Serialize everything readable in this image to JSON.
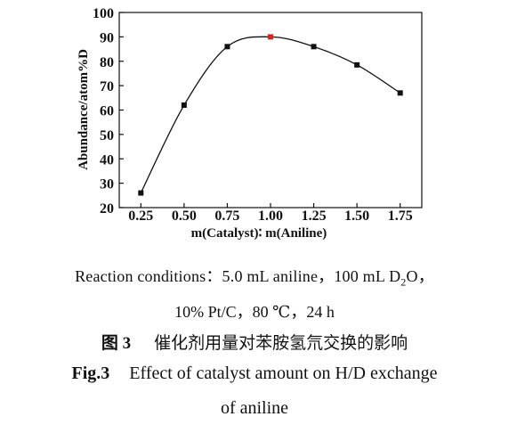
{
  "chart_data": {
    "type": "line",
    "x": [
      0.25,
      0.5,
      0.75,
      1.0,
      1.25,
      1.5,
      1.75
    ],
    "y": [
      26,
      62,
      86,
      90,
      86,
      78.5,
      67
    ],
    "highlight_index": 3,
    "highlight_color": "#e0201e",
    "point_color": "#111111",
    "xticks": [
      "0.25",
      "0.50",
      "0.75",
      "1.00",
      "1.25",
      "1.50",
      "1.75"
    ],
    "yticks": [
      "20",
      "30",
      "40",
      "50",
      "60",
      "70",
      "80",
      "90",
      "100"
    ],
    "xlim": [
      0.125,
      1.875
    ],
    "ylim": [
      20,
      100
    ],
    "xlabel": "m(Catalyst)∶ m(Aniline)",
    "ylabel": "Abundance/atom%D",
    "grid": false,
    "smooth": true
  },
  "caption": {
    "conditions_line1_pre": "Reaction conditions：5.0 mL aniline，100 mL D",
    "conditions_line1_sub": "2",
    "conditions_line1_post": "O，",
    "conditions_line2": "10% Pt/C，80 ℃，24 h",
    "cn_label": "图 3",
    "cn_text": "催化剂用量对苯胺氢氘交换的影响",
    "en_label": "Fig.3",
    "en_text_line1": "Effect of catalyst amount on H/D exchange",
    "en_text_line2": "of aniline"
  }
}
